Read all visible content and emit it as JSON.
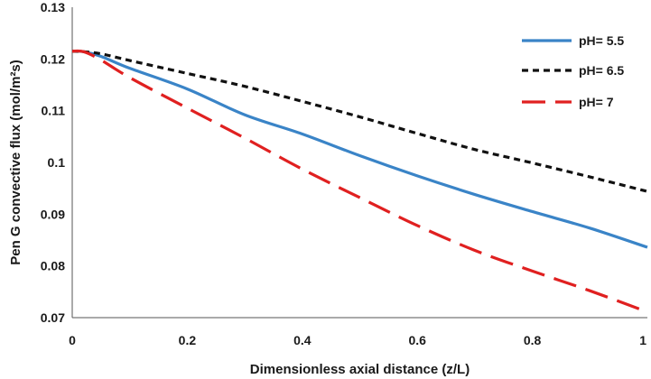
{
  "chart_data": {
    "type": "line",
    "xlabel": "Dimensionless axial distance (z/L)",
    "ylabel": "Pen G convective flux (mol/m²s)",
    "xlim": [
      0,
      1
    ],
    "ylim": [
      0.07,
      0.13
    ],
    "x_ticks": [
      "0",
      "0.2",
      "0.4",
      "0.6",
      "0.8",
      "1"
    ],
    "y_ticks": [
      "0.07",
      "0.08",
      "0.09",
      "0.1",
      "0.11",
      "0.12",
      "0.13"
    ],
    "grid": false,
    "legend_position": "top-right",
    "series": [
      {
        "name": "pH= 5.5",
        "color": "#3a84c7",
        "dash": "solid",
        "x": [
          0,
          0.02,
          0.05,
          0.1,
          0.2,
          0.3,
          0.4,
          0.5,
          0.6,
          0.7,
          0.8,
          0.9,
          1.0
        ],
        "y": [
          0.1215,
          0.1214,
          0.1205,
          0.1182,
          0.1142,
          0.1092,
          0.1055,
          0.1013,
          0.0974,
          0.0938,
          0.0905,
          0.0873,
          0.0836
        ]
      },
      {
        "name": "pH= 6.5",
        "color": "#111111",
        "dash": "short",
        "x": [
          0,
          0.02,
          0.05,
          0.1,
          0.2,
          0.3,
          0.4,
          0.5,
          0.6,
          0.7,
          0.8,
          0.9,
          1.0
        ],
        "y": [
          0.1215,
          0.1214,
          0.121,
          0.1197,
          0.1172,
          0.1147,
          0.1118,
          0.1088,
          0.1056,
          0.1025,
          0.0999,
          0.0972,
          0.0944
        ]
      },
      {
        "name": "pH= 7",
        "color": "#e02020",
        "dash": "long",
        "x": [
          0,
          0.02,
          0.05,
          0.1,
          0.2,
          0.3,
          0.4,
          0.5,
          0.6,
          0.7,
          0.8,
          0.9,
          1.0
        ],
        "y": [
          0.1215,
          0.1214,
          0.1198,
          0.1164,
          0.1105,
          0.1047,
          0.0987,
          0.0932,
          0.0878,
          0.083,
          0.079,
          0.0752,
          0.0711
        ]
      }
    ]
  }
}
